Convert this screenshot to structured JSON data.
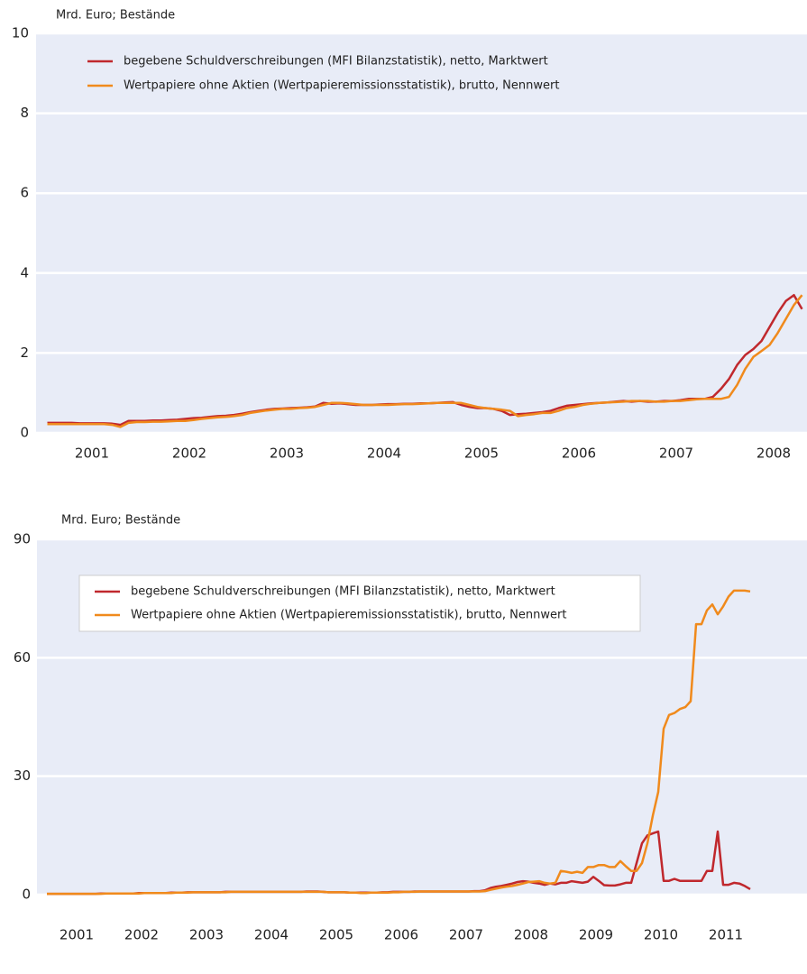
{
  "chart_data": [
    {
      "type": "line",
      "y_label": "Mrd. Euro; Bestände",
      "categories": [
        null,
        null,
        null,
        null,
        null,
        null,
        "2001",
        null,
        null,
        null,
        null,
        null,
        null,
        null,
        null,
        null,
        null,
        null,
        "2002",
        null,
        null,
        null,
        null,
        null,
        null,
        null,
        null,
        null,
        null,
        null,
        "2003",
        null,
        null,
        null,
        null,
        null,
        null,
        null,
        null,
        null,
        null,
        null,
        "2004",
        null,
        null,
        null,
        null,
        null,
        null,
        null,
        null,
        null,
        null,
        null,
        "2005",
        null,
        null,
        null,
        null,
        null,
        null,
        null,
        null,
        null,
        null,
        null,
        "2006",
        null,
        null,
        null,
        null,
        null,
        null,
        null,
        null,
        null,
        null,
        null,
        "2007",
        null,
        null,
        null,
        null,
        null,
        null,
        null,
        null,
        null,
        null,
        null,
        "2008",
        null,
        null,
        null
      ],
      "series": [
        {
          "name": "begebene Schuldverschreibungen (MFI Bilanzstatistik), netto, Marktwert",
          "color": "#c0282d",
          "values": [
            0.25,
            0.25,
            0.25,
            0.25,
            0.24,
            0.24,
            0.24,
            0.24,
            0.23,
            0.2,
            0.3,
            0.3,
            0.3,
            0.31,
            0.31,
            0.32,
            0.33,
            0.35,
            0.37,
            0.38,
            0.4,
            0.42,
            0.43,
            0.45,
            0.48,
            0.52,
            0.55,
            0.58,
            0.6,
            0.61,
            0.62,
            0.63,
            0.64,
            0.66,
            0.75,
            0.73,
            0.74,
            0.72,
            0.7,
            0.7,
            0.7,
            0.71,
            0.72,
            0.72,
            0.73,
            0.73,
            0.74,
            0.74,
            0.75,
            0.76,
            0.77,
            0.7,
            0.65,
            0.62,
            0.62,
            0.6,
            0.55,
            0.45,
            0.47,
            0.48,
            0.5,
            0.52,
            0.55,
            0.62,
            0.68,
            0.7,
            0.72,
            0.74,
            0.75,
            0.76,
            0.78,
            0.8,
            0.78,
            0.8,
            0.78,
            0.78,
            0.8,
            0.8,
            0.82,
            0.85,
            0.85,
            0.85,
            0.9,
            1.1,
            1.35,
            1.7,
            1.95,
            2.1,
            2.3,
            2.65,
            3.0,
            3.3,
            3.45,
            3.1
          ]
        },
        {
          "name": "Wertpapiere ohne Aktien (Wertpapieremissionsstatistik), brutto, Nennwert",
          "color": "#f08a1c",
          "values": [
            0.22,
            0.22,
            0.22,
            0.22,
            0.22,
            0.22,
            0.22,
            0.22,
            0.2,
            0.15,
            0.25,
            0.27,
            0.27,
            0.28,
            0.28,
            0.29,
            0.3,
            0.3,
            0.32,
            0.35,
            0.37,
            0.39,
            0.4,
            0.42,
            0.45,
            0.5,
            0.53,
            0.56,
            0.58,
            0.6,
            0.6,
            0.62,
            0.63,
            0.65,
            0.7,
            0.75,
            0.75,
            0.74,
            0.72,
            0.7,
            0.7,
            0.7,
            0.7,
            0.71,
            0.72,
            0.72,
            0.73,
            0.74,
            0.75,
            0.75,
            0.75,
            0.75,
            0.7,
            0.65,
            0.62,
            0.6,
            0.58,
            0.55,
            0.42,
            0.45,
            0.47,
            0.5,
            0.5,
            0.55,
            0.62,
            0.65,
            0.7,
            0.73,
            0.75,
            0.76,
            0.77,
            0.78,
            0.8,
            0.8,
            0.8,
            0.78,
            0.78,
            0.8,
            0.8,
            0.82,
            0.84,
            0.85,
            0.85,
            0.85,
            0.9,
            1.2,
            1.6,
            1.9,
            2.05,
            2.2,
            2.5,
            2.85,
            3.2,
            3.45
          ]
        }
      ],
      "ylim": [
        0,
        10
      ],
      "yticks": [
        0,
        2,
        4,
        6,
        8,
        10
      ],
      "grid": true
    },
    {
      "type": "line",
      "y_label": "Mrd. Euro; Bestände",
      "categories": [
        null,
        null,
        null,
        null,
        null,
        null,
        "2001",
        null,
        null,
        null,
        null,
        null,
        null,
        null,
        null,
        null,
        null,
        null,
        "2002",
        null,
        null,
        null,
        null,
        null,
        null,
        null,
        null,
        null,
        null,
        null,
        "2003",
        null,
        null,
        null,
        null,
        null,
        null,
        null,
        null,
        null,
        null,
        null,
        "2004",
        null,
        null,
        null,
        null,
        null,
        null,
        null,
        null,
        null,
        null,
        null,
        "2005",
        null,
        null,
        null,
        null,
        null,
        null,
        null,
        null,
        null,
        null,
        null,
        "2006",
        null,
        null,
        null,
        null,
        null,
        null,
        null,
        null,
        null,
        null,
        null,
        "2007",
        null,
        null,
        null,
        null,
        null,
        null,
        null,
        null,
        null,
        null,
        null,
        "2008",
        null,
        null,
        null,
        null,
        null,
        null,
        null,
        null,
        null,
        null,
        null,
        "2009",
        null,
        null,
        null,
        null,
        null,
        null,
        null,
        null,
        null,
        null,
        null,
        "2010",
        null,
        null,
        null,
        null,
        null,
        null,
        null,
        null,
        null,
        null,
        null,
        "2011",
        null,
        null,
        null,
        null
      ],
      "series": [
        {
          "name": "begebene Schuldverschreibungen (MFI Bilanzstatistik), netto, Marktwert",
          "color": "#c0282d",
          "values": [
            0.2,
            0.2,
            0.2,
            0.2,
            0.2,
            0.2,
            0.2,
            0.2,
            0.2,
            0.2,
            0.3,
            0.3,
            0.3,
            0.3,
            0.3,
            0.3,
            0.3,
            0.4,
            0.4,
            0.4,
            0.4,
            0.4,
            0.4,
            0.5,
            0.5,
            0.5,
            0.6,
            0.6,
            0.6,
            0.6,
            0.6,
            0.6,
            0.6,
            0.7,
            0.7,
            0.7,
            0.7,
            0.7,
            0.7,
            0.7,
            0.7,
            0.7,
            0.7,
            0.7,
            0.7,
            0.7,
            0.7,
            0.7,
            0.8,
            0.8,
            0.8,
            0.7,
            0.6,
            0.6,
            0.6,
            0.6,
            0.5,
            0.5,
            0.5,
            0.5,
            0.5,
            0.5,
            0.6,
            0.6,
            0.7,
            0.7,
            0.7,
            0.7,
            0.8,
            0.8,
            0.8,
            0.8,
            0.8,
            0.8,
            0.8,
            0.8,
            0.8,
            0.8,
            0.8,
            0.9,
            0.9,
            1.1,
            1.7,
            2,
            2.2,
            2.5,
            2.8,
            3.2,
            3.4,
            3.3,
            3.0,
            2.8,
            2.5,
            2.8,
            2.6,
            3,
            3,
            3.4,
            3.2,
            3,
            3.3,
            4.5,
            3.5,
            2.4,
            2.3,
            2.3,
            2.6,
            3,
            3,
            8,
            13,
            15,
            15.5,
            16,
            3.5,
            3.5,
            4,
            3.5,
            3.5,
            3.5,
            3.5,
            3.5,
            6,
            6,
            16,
            2.5,
            2.5,
            3,
            2.8,
            2.2,
            1.4
          ]
        },
        {
          "name": "Wertpapiere ohne Aktien (Wertpapieremissionsstatistik), brutto, Nennwert",
          "color": "#f08a1c",
          "values": [
            0.2,
            0.2,
            0.2,
            0.2,
            0.2,
            0.2,
            0.2,
            0.2,
            0.2,
            0.2,
            0.2,
            0.3,
            0.3,
            0.3,
            0.3,
            0.3,
            0.3,
            0.3,
            0.4,
            0.4,
            0.4,
            0.4,
            0.4,
            0.4,
            0.5,
            0.5,
            0.5,
            0.6,
            0.6,
            0.6,
            0.6,
            0.6,
            0.6,
            0.6,
            0.7,
            0.7,
            0.7,
            0.7,
            0.7,
            0.7,
            0.7,
            0.7,
            0.7,
            0.7,
            0.7,
            0.7,
            0.7,
            0.7,
            0.7,
            0.7,
            0.7,
            0.7,
            0.6,
            0.6,
            0.6,
            0.6,
            0.5,
            0.5,
            0.4,
            0.4,
            0.5,
            0.5,
            0.5,
            0.5,
            0.6,
            0.6,
            0.7,
            0.7,
            0.7,
            0.8,
            0.8,
            0.8,
            0.8,
            0.8,
            0.8,
            0.8,
            0.8,
            0.8,
            0.8,
            0.8,
            0.8,
            0.9,
            1.2,
            1.5,
            1.8,
            2,
            2.2,
            2.5,
            2.8,
            3.2,
            3.3,
            3.4,
            3,
            2.8,
            3,
            6,
            5.8,
            5.5,
            5.8,
            5.5,
            7,
            7,
            7.5,
            7.5,
            7,
            7,
            8.5,
            7.2,
            6,
            6,
            8,
            13,
            20,
            26,
            42,
            45.5,
            46,
            47,
            47.5,
            49,
            68.5,
            68.5,
            72,
            73.5,
            71,
            73,
            75.5,
            77,
            77,
            77,
            76.8
          ]
        }
      ],
      "ylim": [
        0,
        90
      ],
      "yticks": [
        0,
        30,
        60,
        90
      ],
      "grid": true
    }
  ]
}
